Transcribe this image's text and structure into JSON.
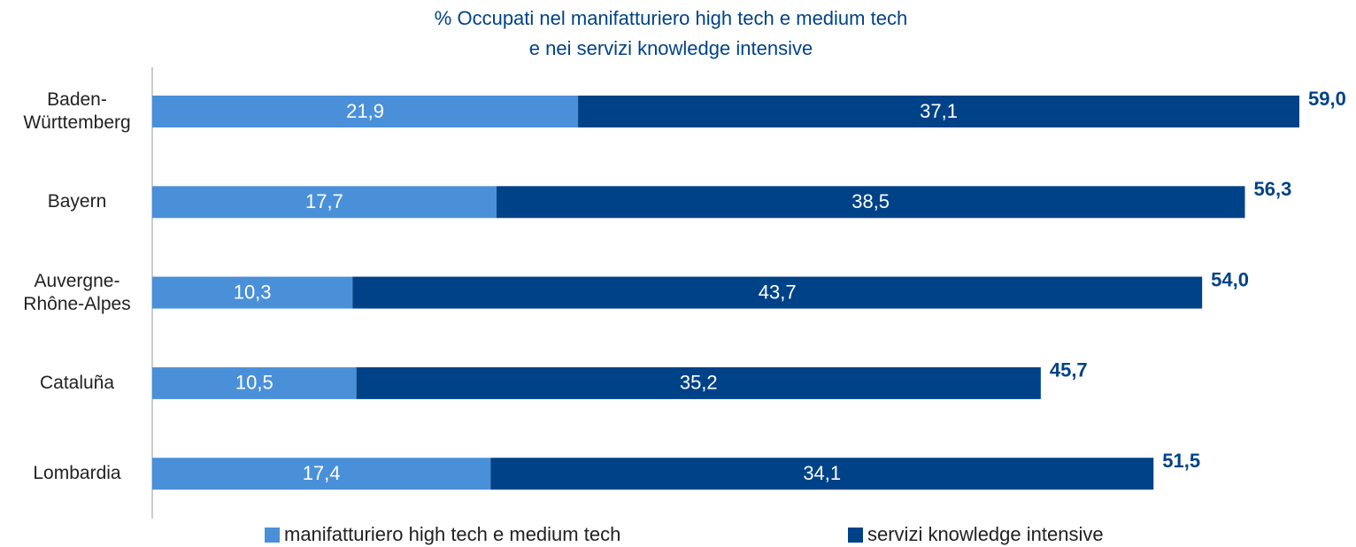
{
  "chart_data": {
    "type": "stacked-bar-horizontal",
    "title": [
      "% Occupati nel manifatturiero high tech e medium tech",
      "e nei servizi knowledge intensive"
    ],
    "categories": [
      "Baden-Württemberg",
      "Bayern",
      "Auvergne-Rhône-Alpes",
      "Cataluña",
      "Lombardia"
    ],
    "series": [
      {
        "name": "manifatturiero high tech e medium tech",
        "color": "#4a90d9",
        "values": [
          21.9,
          17.7,
          10.3,
          10.5,
          17.4
        ],
        "value_labels": [
          "21,9",
          "17,7",
          "10,3",
          "10,5",
          "17,4"
        ]
      },
      {
        "name": "servizi knowledge intensive",
        "color": "#004288",
        "values": [
          37.1,
          38.5,
          43.7,
          35.2,
          34.1
        ],
        "value_labels": [
          "37,1",
          "38,5",
          "43,7",
          "35,2",
          "34,1"
        ]
      }
    ],
    "totals": [
      59.0,
      56.3,
      54.0,
      45.7,
      51.5
    ],
    "total_labels": [
      "59,0",
      "56,3",
      "54,0",
      "45,7",
      "51,5"
    ],
    "total_color": "#004288"
  }
}
